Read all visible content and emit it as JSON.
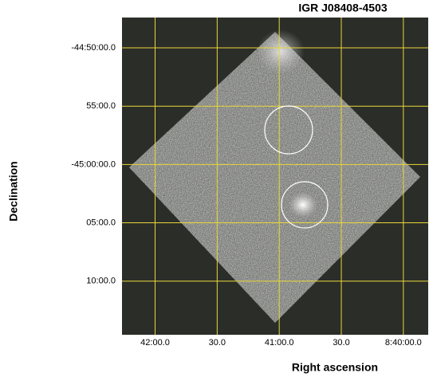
{
  "chart_data": {
    "type": "image",
    "title": "IGR J08408-4503",
    "xlabel": "Right ascension",
    "ylabel": "Declination",
    "xlim": [
      31336,
      31188
    ],
    "ylim": [
      -2687.4,
      -2714.6
    ],
    "xticks": [
      {
        "value": 31320,
        "label": "42:00.0"
      },
      {
        "value": 31290,
        "label": "30.0"
      },
      {
        "value": 31260,
        "label": "41:00.0"
      },
      {
        "value": 31230,
        "label": "30.0"
      },
      {
        "value": 31200,
        "label": "8:40:00.0"
      }
    ],
    "yticks": [
      {
        "value": -2690,
        "label": "-44:50:00.0"
      },
      {
        "value": -2695,
        "label": "55:00.0"
      },
      {
        "value": -2700,
        "label": "-45:00:00.0"
      },
      {
        "value": -2705,
        "label": "05:00.0"
      },
      {
        "value": -2710,
        "label": "10:00.0"
      }
    ],
    "grid": true,
    "grid_color": "#e8d838"
  }
}
